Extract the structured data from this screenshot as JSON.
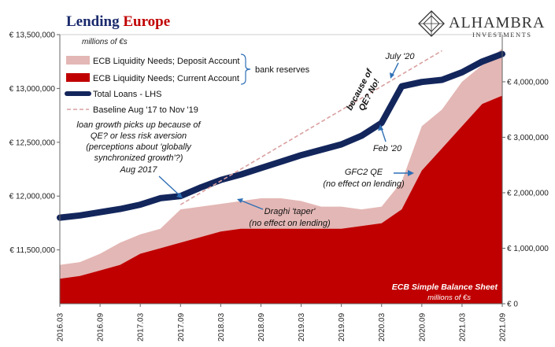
{
  "title": {
    "part1": "Lending",
    "part2": "Europe"
  },
  "subtitle": "millions of €s",
  "logo": {
    "name": "ALHAMBRA",
    "sub": "INVESTMENTS"
  },
  "colors": {
    "navy": "#13265c",
    "red": "#c00000",
    "pink": "#e3b7b5",
    "title_red": "#c00000",
    "title_navy": "#1a2a6c",
    "baseline": "#d9a0a0"
  },
  "legend": {
    "deposit": "ECB Liquidity Needs; Deposit Account",
    "current": "ECB Liquidity Needs; Current Account",
    "total": "Total Loans - LHS",
    "baseline": "Baseline Aug '17 to Nov '19",
    "bracket_label": "bank reserves"
  },
  "annotations": {
    "a1": "loan growth picks up because of",
    "a2": "QE? or less risk aversion",
    "a3": "(perceptions about 'globally",
    "a4": "synchronized growth'?)",
    "a5": "Aug 2017",
    "taper1": "Draghi 'taper'",
    "taper2": "(no effect on lending)",
    "gfc1": "GFC2 QE",
    "gfc2": "(no effect on lending)",
    "q1": "because of",
    "q2": "QE? No!",
    "july": "July '20",
    "feb": "Feb '20",
    "ecb1": "ECB Simple Balance Sheet",
    "ecb2": "millions of €s"
  },
  "chart_data": {
    "type": "area",
    "x": [
      "2016.03",
      "2016.06",
      "2016.09",
      "2016.12",
      "2017.03",
      "2017.06",
      "2017.09",
      "2017.12",
      "2018.03",
      "2018.06",
      "2018.09",
      "2018.12",
      "2019.03",
      "2019.06",
      "2019.09",
      "2019.12",
      "2020.03",
      "2020.06",
      "2020.09",
      "2020.12",
      "2021.03",
      "2021.06",
      "2021.09"
    ],
    "x_tick_labels": [
      "2016.03",
      "2016.09",
      "2017.03",
      "2017.09",
      "2018.03",
      "2018.09",
      "2019.03",
      "2019.09",
      "2020.03",
      "2020.09",
      "2021.03",
      "2021.09"
    ],
    "left_axis": {
      "label": "Total Loans",
      "ylim": [
        11000000,
        13500000
      ],
      "ticks": [
        "€ 11,500,000",
        "€ 12,000,000",
        "€ 12,500,000",
        "€ 13,000,000",
        "€ 13,500,000"
      ],
      "tick_values": [
        11500000,
        12000000,
        12500000,
        13000000,
        13500000
      ]
    },
    "right_axis": {
      "label": "ECB Liquidity Needs",
      "ylim": [
        0,
        4850000
      ],
      "ticks": [
        "€ 0",
        "€ 1,000,000",
        "€ 2,000,000",
        "€ 3,000,000",
        "€ 4,000,000"
      ],
      "tick_values": [
        0,
        1000000,
        2000000,
        3000000,
        4000000
      ]
    },
    "series": [
      {
        "name": "ECB Liquidity Needs; Deposit Account",
        "axis": "right",
        "values": [
          700000,
          750000,
          900000,
          1100000,
          1250000,
          1350000,
          1700000,
          1750000,
          1800000,
          1850000,
          1900000,
          1900000,
          1850000,
          1750000,
          1750000,
          1700000,
          1750000,
          2200000,
          3200000,
          3500000,
          4000000,
          4300000,
          4600000
        ]
      },
      {
        "name": "ECB Liquidity Needs; Current Account",
        "axis": "right",
        "values": [
          450000,
          500000,
          600000,
          700000,
          900000,
          1000000,
          1100000,
          1200000,
          1300000,
          1350000,
          1350000,
          1350000,
          1350000,
          1350000,
          1350000,
          1400000,
          1450000,
          1700000,
          2400000,
          2800000,
          3200000,
          3600000,
          3750000
        ]
      },
      {
        "name": "Total Loans - LHS",
        "axis": "left",
        "values": [
          11800000,
          11820000,
          11850000,
          11880000,
          11920000,
          11980000,
          12000000,
          12080000,
          12150000,
          12200000,
          12260000,
          12320000,
          12380000,
          12430000,
          12480000,
          12560000,
          12680000,
          13020000,
          13060000,
          13080000,
          13150000,
          13250000,
          13320000
        ]
      },
      {
        "name": "Baseline Aug '17 to Nov '19",
        "axis": "left",
        "values": [
          null,
          null,
          null,
          null,
          null,
          null,
          11920000,
          12030000,
          12140000,
          12250000,
          12360000,
          12470000,
          12580000,
          12690000,
          12800000,
          12910000,
          13020000,
          13130000,
          13240000,
          13350000,
          null,
          null,
          null
        ]
      }
    ]
  }
}
